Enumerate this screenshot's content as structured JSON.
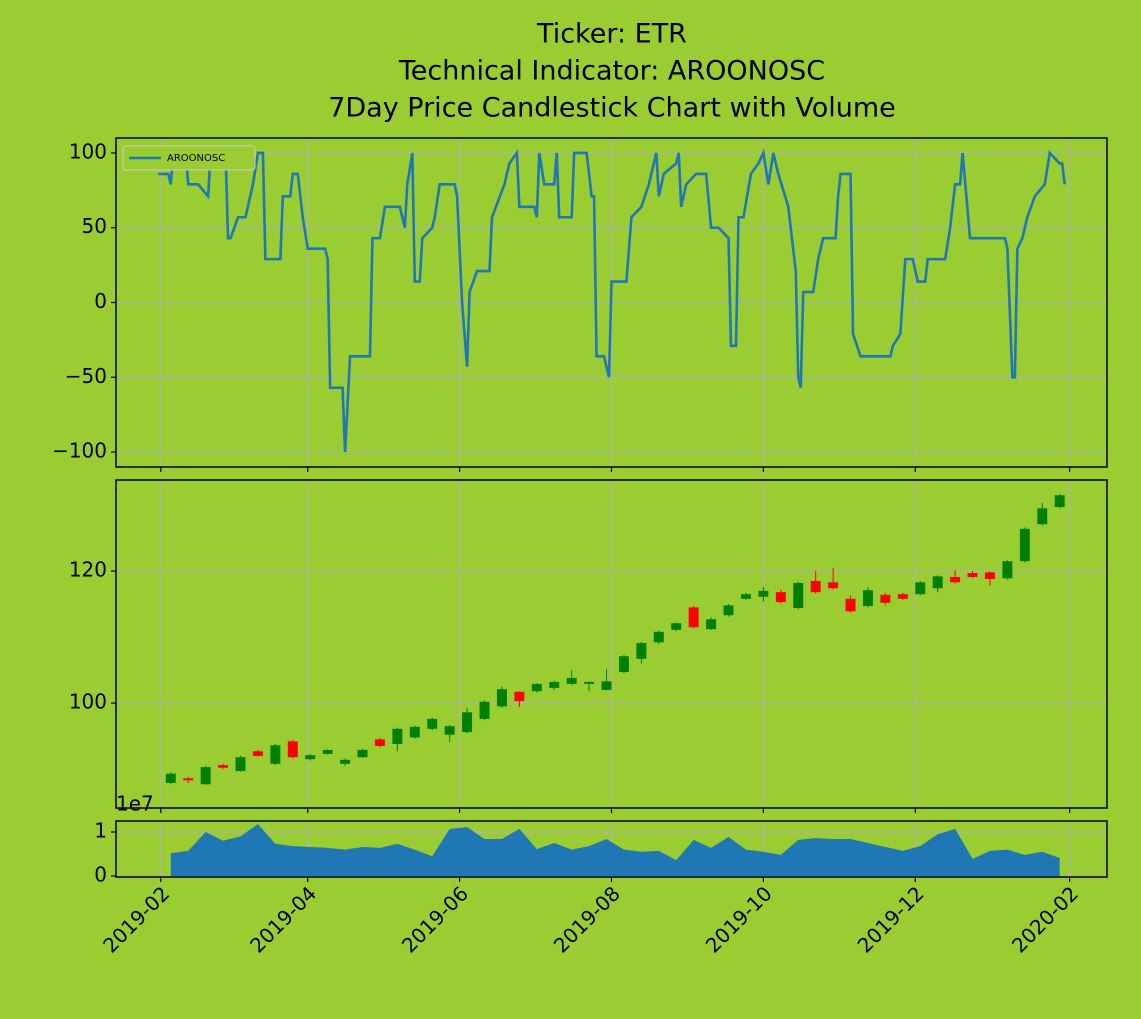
{
  "chart_data": [
    {
      "type": "line",
      "title": [
        "Ticker: ETR",
        "Technical Indicator: AROONOSC",
        "7Day Price Candlestick Chart with Volume"
      ],
      "legend": "upper left",
      "grid": true,
      "ylim": [
        -110,
        110
      ],
      "yticks": [
        {
          "value": -100,
          "label": "−100"
        },
        {
          "value": -50,
          "label": "−50"
        },
        0,
        50,
        100
      ],
      "series": [
        {
          "name": "AROONOSC",
          "color": "#1f77b4",
          "x": [
            "2019-01-31",
            "2019-02-04",
            "2019-02-05",
            "2019-02-06",
            "2019-02-11",
            "2019-02-12",
            "2019-02-16",
            "2019-02-20",
            "2019-02-21",
            "2019-02-27",
            "2019-02-28",
            "2019-03-01",
            "2019-03-04",
            "2019-03-07",
            "2019-03-10",
            "2019-03-12",
            "2019-03-14",
            "2019-03-15",
            "2019-03-21",
            "2019-03-22",
            "2019-03-25",
            "2019-03-26",
            "2019-03-28",
            "2019-03-30",
            "2019-04-01",
            "2019-04-08",
            "2019-04-09",
            "2019-04-10",
            "2019-04-15",
            "2019-04-16",
            "2019-04-18",
            "2019-04-26",
            "2019-04-27",
            "2019-04-30",
            "2019-05-02",
            "2019-05-08",
            "2019-05-10",
            "2019-05-11",
            "2019-05-13",
            "2019-05-14",
            "2019-05-16",
            "2019-05-17",
            "2019-05-21",
            "2019-05-22",
            "2019-05-24",
            "2019-05-30",
            "2019-05-31",
            "2019-06-02",
            "2019-06-04",
            "2019-06-05",
            "2019-06-08",
            "2019-06-13",
            "2019-06-14",
            "2019-06-19",
            "2019-06-21",
            "2019-06-24",
            "2019-06-25",
            "2019-07-01",
            "2019-07-02",
            "2019-07-03",
            "2019-07-05",
            "2019-07-09",
            "2019-07-10",
            "2019-07-11",
            "2019-07-16",
            "2019-07-17",
            "2019-07-22",
            "2019-07-23",
            "2019-07-24",
            "2019-07-25",
            "2019-07-26",
            "2019-07-29",
            "2019-07-31",
            "2019-08-01",
            "2019-08-07",
            "2019-08-09",
            "2019-08-13",
            "2019-08-16",
            "2019-08-19",
            "2019-08-20",
            "2019-08-22",
            "2019-08-27",
            "2019-08-28",
            "2019-08-29",
            "2019-08-31",
            "2019-09-04",
            "2019-09-08",
            "2019-09-10",
            "2019-09-13",
            "2019-09-17",
            "2019-09-18",
            "2019-09-20",
            "2019-09-21",
            "2019-09-23",
            "2019-09-26",
            "2019-09-29",
            "2019-10-01",
            "2019-10-03",
            "2019-10-05",
            "2019-10-07",
            "2019-10-11",
            "2019-10-14",
            "2019-10-15",
            "2019-10-16",
            "2019-10-17",
            "2019-10-21",
            "2019-10-23",
            "2019-10-25",
            "2019-10-30",
            "2019-10-31",
            "2019-11-01",
            "2019-11-05",
            "2019-11-06",
            "2019-11-09",
            "2019-11-21",
            "2019-11-22",
            "2019-11-25",
            "2019-11-27",
            "2019-11-30",
            "2019-12-02",
            "2019-12-05",
            "2019-12-06",
            "2019-12-13",
            "2019-12-15",
            "2019-12-17",
            "2019-12-19",
            "2019-12-20",
            "2019-12-23",
            "2020-01-06",
            "2020-01-07",
            "2020-01-09",
            "2020-01-10",
            "2020-01-11",
            "2020-01-13",
            "2020-01-15",
            "2020-01-18",
            "2020-01-22",
            "2020-01-24",
            "2020-01-28",
            "2020-01-29",
            "2020-01-30"
          ],
          "values": [
            86,
            86,
            79,
            100,
            100,
            79,
            79,
            71,
            100,
            100,
            43,
            43,
            57,
            57,
            79,
            100,
            100,
            29,
            29,
            71,
            71,
            86,
            86,
            57,
            36,
            36,
            29,
            -57,
            -57,
            -100,
            -36,
            -36,
            43,
            43,
            64,
            64,
            50,
            79,
            100,
            14,
            14,
            43,
            50,
            57,
            79,
            79,
            71,
            0,
            -43,
            7,
            21,
            21,
            57,
            79,
            93,
            100,
            64,
            64,
            57,
            100,
            79,
            79,
            100,
            57,
            57,
            100,
            100,
            86,
            71,
            71,
            -36,
            -36,
            -50,
            14,
            14,
            57,
            64,
            79,
            100,
            71,
            86,
            93,
            100,
            64,
            79,
            86,
            86,
            50,
            50,
            43,
            -29,
            -29,
            57,
            57,
            86,
            93,
            100,
            79,
            100,
            86,
            64,
            21,
            -50,
            -57,
            7,
            7,
            29,
            43,
            43,
            71,
            86,
            86,
            -21,
            -36,
            -36,
            -29,
            -21,
            29,
            29,
            14,
            14,
            29,
            29,
            50,
            79,
            79,
            100,
            43,
            43,
            36,
            -50,
            -50,
            36,
            43,
            57,
            71,
            79,
            100,
            93,
            93,
            79
          ]
        }
      ]
    },
    {
      "type": "candlestick",
      "grid": true,
      "ylim": [
        84.1,
        133.8
      ],
      "yticks": [
        100,
        120
      ],
      "up_color": "#008000",
      "down_color": "#ff0000",
      "x": [
        "2019-02-05",
        "2019-02-12",
        "2019-02-19",
        "2019-02-26",
        "2019-03-05",
        "2019-03-12",
        "2019-03-19",
        "2019-03-26",
        "2019-04-02",
        "2019-04-09",
        "2019-04-16",
        "2019-04-23",
        "2019-04-30",
        "2019-05-07",
        "2019-05-14",
        "2019-05-21",
        "2019-05-28",
        "2019-06-04",
        "2019-06-11",
        "2019-06-18",
        "2019-06-25",
        "2019-07-02",
        "2019-07-09",
        "2019-07-16",
        "2019-07-23",
        "2019-07-30",
        "2019-08-06",
        "2019-08-13",
        "2019-08-20",
        "2019-08-27",
        "2019-09-03",
        "2019-09-10",
        "2019-09-17",
        "2019-09-24",
        "2019-10-01",
        "2019-10-08",
        "2019-10-15",
        "2019-10-22",
        "2019-10-29",
        "2019-11-05",
        "2019-11-12",
        "2019-11-19",
        "2019-11-26",
        "2019-12-03",
        "2019-12-10",
        "2019-12-17",
        "2019-12-24",
        "2019-12-31",
        "2020-01-07",
        "2020-01-14",
        "2020-01-21",
        "2020-01-28"
      ],
      "open": [
        87.9,
        88.6,
        87.7,
        90.6,
        89.7,
        92.7,
        90.8,
        94.2,
        91.5,
        92.3,
        90.8,
        91.8,
        94.5,
        93.8,
        94.8,
        96.1,
        95.2,
        95.6,
        97.6,
        99.5,
        101.7,
        101.8,
        102.3,
        102.9,
        102.9,
        102.0,
        104.7,
        106.7,
        109.2,
        111.1,
        114.5,
        111.2,
        113.3,
        115.8,
        116.1,
        116.8,
        114.4,
        118.5,
        118.3,
        115.8,
        114.7,
        116.4,
        116.5,
        116.5,
        117.4,
        119.1,
        119.7,
        119.8,
        118.9,
        121.5,
        127.1,
        129.7
      ],
      "close": [
        89.3,
        88.3,
        90.3,
        90.2,
        91.8,
        92.0,
        93.6,
        91.8,
        92.1,
        92.9,
        91.4,
        92.9,
        93.5,
        96.1,
        96.4,
        97.6,
        96.5,
        98.6,
        100.2,
        102.1,
        100.3,
        102.9,
        103.2,
        103.8,
        103.2,
        103.3,
        107.1,
        109.1,
        110.8,
        112.1,
        111.5,
        112.7,
        114.8,
        116.5,
        117.0,
        115.3,
        118.2,
        116.8,
        117.4,
        113.9,
        117.1,
        115.2,
        115.8,
        118.3,
        119.2,
        118.3,
        119.1,
        118.8,
        121.5,
        126.4,
        129.5,
        131.5
      ],
      "high": [
        89.5,
        88.8,
        90.5,
        90.8,
        92.0,
        92.9,
        93.8,
        94.4,
        92.3,
        93.0,
        91.6,
        93.1,
        94.7,
        96.3,
        96.6,
        97.8,
        96.7,
        99.3,
        100.4,
        102.5,
        101.8,
        103.0,
        103.4,
        105.0,
        103.3,
        105.2,
        107.3,
        109.3,
        111.0,
        112.2,
        114.7,
        113.0,
        115.0,
        116.7,
        117.6,
        117.2,
        118.4,
        120.0,
        120.5,
        116.3,
        117.5,
        116.7,
        116.7,
        118.5,
        119.4,
        120.1,
        120.0,
        120.0,
        121.7,
        126.6,
        130.3,
        131.7
      ],
      "low": [
        87.7,
        87.9,
        87.6,
        90.0,
        89.6,
        91.9,
        90.6,
        91.6,
        91.3,
        92.2,
        90.5,
        91.7,
        93.3,
        92.7,
        94.6,
        95.9,
        94.1,
        95.4,
        97.4,
        99.3,
        99.4,
        101.6,
        102.0,
        102.7,
        101.8,
        101.9,
        104.5,
        106.0,
        108.9,
        110.9,
        111.3,
        111.1,
        113.1,
        115.6,
        115.4,
        115.1,
        114.2,
        116.6,
        117.2,
        113.7,
        114.5,
        114.8,
        115.6,
        116.3,
        116.8,
        118.1,
        118.9,
        117.8,
        118.7,
        121.3,
        126.9,
        129.5
      ]
    },
    {
      "type": "area",
      "grid": true,
      "color": "#1f77b4",
      "ylim": [
        -230000,
        12500000
      ],
      "offset_label": "1e7",
      "yticks": [
        0,
        {
          "value": 10000000,
          "label": "1"
        }
      ],
      "xlim": [
        "2019-01-14",
        "2020-02-16"
      ],
      "xticks": [
        {
          "value": "2019-02-01",
          "label": "2019-02"
        },
        {
          "value": "2019-04-01",
          "label": "2019-04"
        },
        {
          "value": "2019-06-01",
          "label": "2019-06"
        },
        {
          "value": "2019-08-01",
          "label": "2019-08"
        },
        {
          "value": "2019-10-01",
          "label": "2019-10"
        },
        {
          "value": "2019-12-01",
          "label": "2019-12"
        },
        {
          "value": "2020-02-01",
          "label": "2020-02"
        }
      ],
      "values": [
        5200000,
        5700000,
        10000000,
        8000000,
        9000000,
        11800000,
        7300000,
        6800000,
        6600000,
        6400000,
        6000000,
        6600000,
        6400000,
        7300000,
        6000000,
        4500000,
        10700000,
        11100000,
        8400000,
        8400000,
        10700000,
        6100000,
        7500000,
        6000000,
        6800000,
        8400000,
        6000000,
        5500000,
        5700000,
        3600000,
        8200000,
        6400000,
        8900000,
        6000000,
        5500000,
        4800000,
        8200000,
        8600000,
        8400000,
        8400000,
        7500000,
        6600000,
        5700000,
        6800000,
        9500000,
        10700000,
        3900000,
        5700000,
        6000000,
        4800000,
        5500000,
        4100000
      ]
    }
  ]
}
